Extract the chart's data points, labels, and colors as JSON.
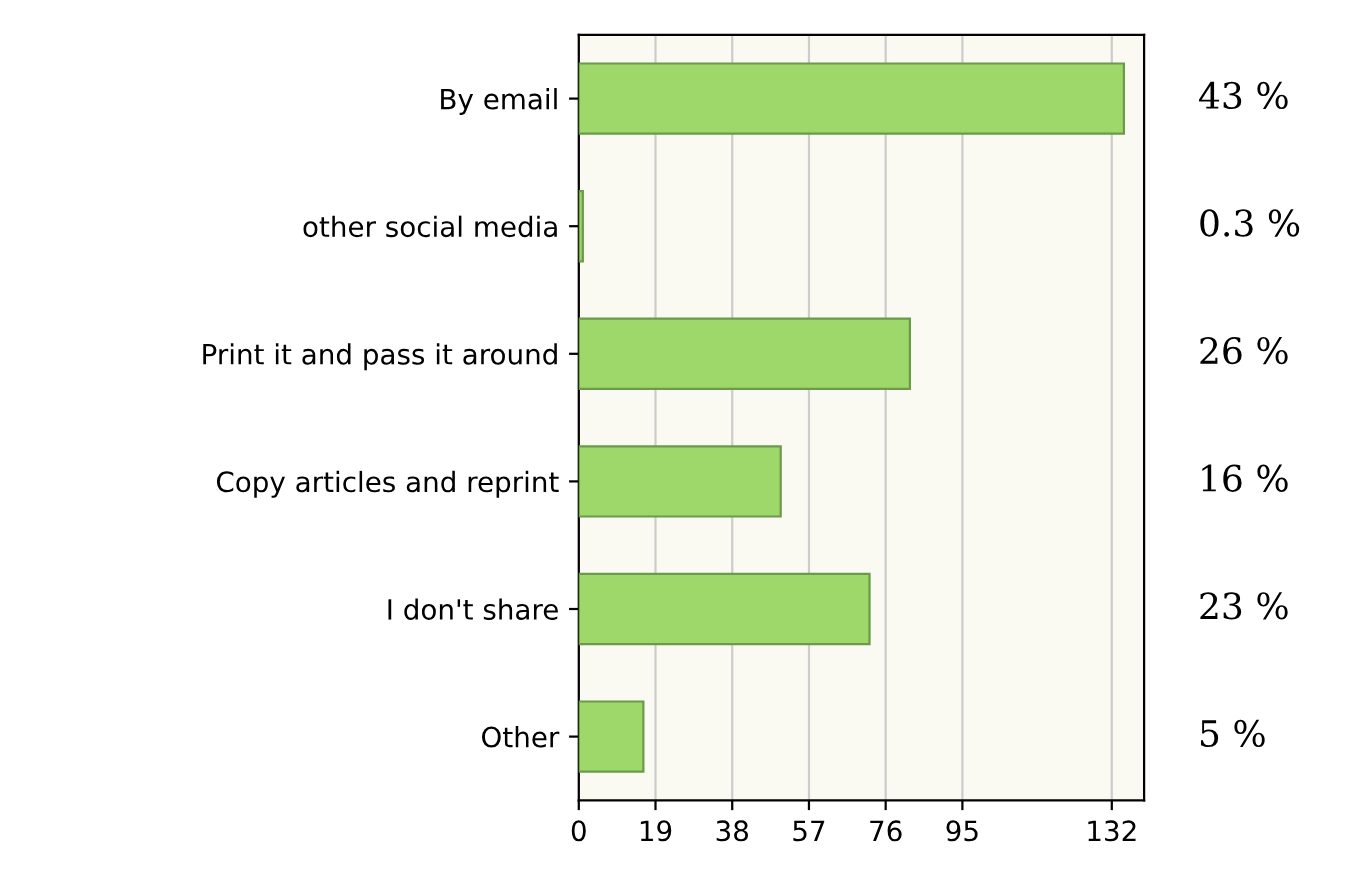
{
  "chart_data": {
    "type": "bar",
    "orientation": "horizontal",
    "categories": [
      "By email",
      "other social media",
      "Print it and pass it around",
      "Copy articles and reprint",
      "I don't share",
      "Other"
    ],
    "values": [
      135,
      1,
      82,
      50,
      72,
      16
    ],
    "annotations": [
      "43 %",
      "0.3 %",
      "26 %",
      "16 %",
      "23 %",
      "5 %"
    ],
    "color": "#9ed86a",
    "xlim": [
      0,
      140
    ],
    "xticks": [
      0,
      19,
      38,
      57,
      76,
      95,
      132
    ],
    "grid": "x"
  }
}
